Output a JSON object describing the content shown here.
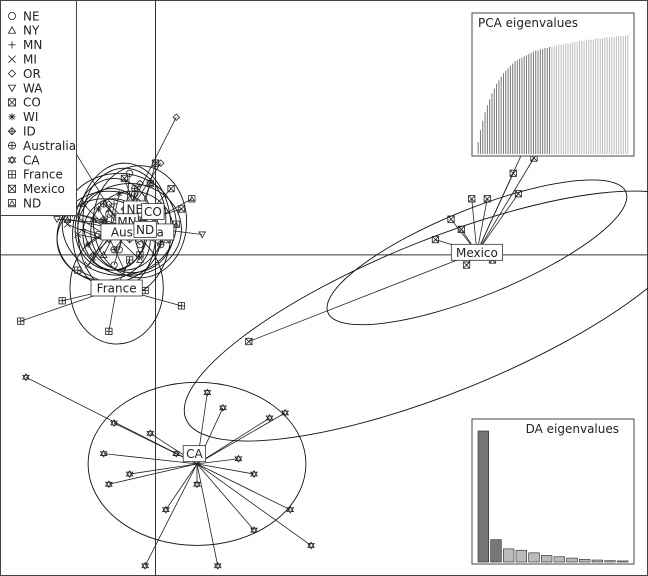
{
  "chart_data": {
    "type": "scatter",
    "title": "",
    "xlabel": "",
    "ylabel": "",
    "xlim": [
      -3.0,
      9.5
    ],
    "ylim": [
      -6.3,
      5.0
    ],
    "grid": false,
    "axes_lines_at_origin": true,
    "legend": {
      "placement": "top-left",
      "entries": [
        {
          "label": "NE",
          "symbol": "circle"
        },
        {
          "label": "NY",
          "symbol": "triangle-up"
        },
        {
          "label": "MN",
          "symbol": "plus"
        },
        {
          "label": "MI",
          "symbol": "cross"
        },
        {
          "label": "OR",
          "symbol": "diamond"
        },
        {
          "label": "WA",
          "symbol": "triangle-down"
        },
        {
          "label": "CO",
          "symbol": "square-cross"
        },
        {
          "label": "WI",
          "symbol": "asterisk"
        },
        {
          "label": "ID",
          "symbol": "diamond-plus"
        },
        {
          "label": "Australia",
          "symbol": "circle-plus"
        },
        {
          "label": "CA",
          "symbol": "star-of-david"
        },
        {
          "label": "France",
          "symbol": "square-plus"
        },
        {
          "label": "Mexico",
          "symbol": "circle-cross"
        },
        {
          "label": "ND",
          "symbol": "square-triangle"
        }
      ]
    },
    "groups": [
      {
        "label": "NE",
        "center": [
          -0.6,
          0.5
        ],
        "ellipse": {
          "rx": 0.9,
          "ry": 1.3,
          "angle": 0
        },
        "points": [
          [
            -0.9,
            0.8
          ],
          [
            -0.4,
            1.2
          ],
          [
            -0.7,
            0.1
          ],
          [
            -0.2,
            0.6
          ],
          [
            -1.1,
            0.4
          ],
          [
            -0.5,
            1.6
          ],
          [
            -0.8,
            -0.2
          ],
          [
            -0.3,
            0.2
          ]
        ]
      },
      {
        "label": "NY",
        "center": [
          -0.8,
          0.4
        ],
        "ellipse": {
          "rx": 0.8,
          "ry": 1.1,
          "angle": 0
        },
        "points": [
          [
            -1.2,
            0.7
          ],
          [
            -0.5,
            1.1
          ],
          [
            -1.0,
            0.0
          ],
          [
            -0.6,
            0.4
          ],
          [
            -1.4,
            1.0
          ],
          [
            -0.3,
            -0.1
          ]
        ]
      },
      {
        "label": "MN",
        "center": [
          -0.9,
          0.35
        ],
        "ellipse": {
          "rx": 1.0,
          "ry": 0.9,
          "angle": 0
        },
        "points": [
          [
            -1.4,
            0.5
          ],
          [
            -0.8,
            1.0
          ],
          [
            -1.2,
            -0.1
          ],
          [
            -0.5,
            0.3
          ],
          [
            -1.6,
            0.8
          ],
          [
            -0.6,
            -0.3
          ]
        ]
      },
      {
        "label": "MI",
        "center": [
          -1.0,
          0.3
        ],
        "ellipse": {
          "rx": 0.9,
          "ry": 0.8,
          "angle": 0
        },
        "points": [
          [
            -1.5,
            0.4
          ],
          [
            -0.9,
            0.9
          ],
          [
            -1.3,
            -0.2
          ],
          [
            -0.7,
            0.6
          ],
          [
            -1.7,
            0.6
          ]
        ]
      },
      {
        "label": "OR",
        "center": [
          -0.6,
          0.7
        ],
        "ellipse": {
          "rx": 0.8,
          "ry": 1.0,
          "angle": 0
        },
        "points": [
          [
            0.4,
            2.7
          ],
          [
            0.1,
            1.8
          ],
          [
            -0.3,
            1.4
          ],
          [
            -0.9,
            1.0
          ],
          [
            -0.5,
            0.3
          ]
        ]
      },
      {
        "label": "WA",
        "center": [
          -0.7,
          0.6
        ],
        "ellipse": {
          "rx": 1.1,
          "ry": 1.0,
          "angle": 0
        },
        "points": [
          [
            -1.6,
            2.1
          ],
          [
            0.9,
            0.4
          ],
          [
            -2.3,
            1.0
          ],
          [
            -1.9,
            0.7
          ],
          [
            -0.2,
            0.9
          ],
          [
            -0.9,
            0.3
          ]
        ]
      },
      {
        "label": "CO",
        "center": [
          -0.3,
          0.65
        ],
        "ellipse": {
          "rx": 0.9,
          "ry": 1.1,
          "angle": 0
        },
        "points": [
          [
            0.3,
            1.3
          ],
          [
            0.0,
            1.8
          ],
          [
            0.5,
            0.9
          ],
          [
            -0.6,
            1.5
          ],
          [
            0.2,
            0.3
          ],
          [
            -0.4,
            0.9
          ]
        ]
      },
      {
        "label": "WI",
        "center": [
          -0.85,
          0.5
        ],
        "ellipse": {
          "rx": 0.7,
          "ry": 0.8,
          "angle": 0
        },
        "points": [
          [
            -1.1,
            0.9
          ],
          [
            -0.6,
            0.6
          ],
          [
            -1.3,
            0.2
          ],
          [
            -0.7,
            1.2
          ]
        ]
      },
      {
        "label": "ID",
        "center": [
          -0.8,
          0.4
        ],
        "ellipse": {
          "rx": 0.6,
          "ry": 0.7,
          "angle": 0
        },
        "points": [
          [
            -1.0,
            0.7
          ],
          [
            -0.5,
            0.5
          ],
          [
            -1.2,
            0.0
          ],
          [
            -0.6,
            0.9
          ]
        ]
      },
      {
        "label": "Australia",
        "center": [
          -0.5,
          0.5
        ],
        "ellipse": {
          "rx": 1.0,
          "ry": 0.9,
          "angle": 0
        },
        "points": [
          [
            -1.0,
            1.0
          ],
          [
            0.0,
            0.9
          ],
          [
            -0.8,
            0.1
          ],
          [
            0.1,
            0.2
          ],
          [
            -0.4,
            1.3
          ]
        ]
      },
      {
        "label": "France",
        "center": [
          -0.75,
          -0.65
        ],
        "ellipse": {
          "rx": 0.9,
          "ry": 1.1,
          "angle": 0
        },
        "points": [
          [
            -2.6,
            -1.3
          ],
          [
            0.5,
            -1.0
          ],
          [
            -1.5,
            -0.3
          ],
          [
            -0.9,
            -1.5
          ],
          [
            -0.2,
            -0.7
          ],
          [
            -1.8,
            -0.9
          ],
          [
            -0.5,
            -0.1
          ]
        ]
      },
      {
        "label": "ND",
        "center": [
          -0.45,
          0.45
        ],
        "ellipse": {
          "rx": 0.8,
          "ry": 0.8,
          "angle": 0
        },
        "points": [
          [
            0.7,
            1.1
          ],
          [
            0.4,
            0.6
          ],
          [
            -0.1,
            1.4
          ],
          [
            -0.9,
            0.5
          ],
          [
            -0.3,
            0.0
          ],
          [
            -1.7,
            0.7
          ],
          [
            -2.1,
            1.0
          ]
        ]
      },
      {
        "label": "CA",
        "center": [
          0.8,
          -4.1
        ],
        "ellipse": {
          "rx": 2.1,
          "ry": 1.6,
          "angle": 0
        },
        "points": [
          [
            -2.5,
            -2.4
          ],
          [
            -0.8,
            -3.3
          ],
          [
            -1.0,
            -3.9
          ],
          [
            -0.9,
            -4.5
          ],
          [
            -0.5,
            -4.3
          ],
          [
            -0.1,
            -3.5
          ],
          [
            0.4,
            -3.9
          ],
          [
            1.0,
            -2.7
          ],
          [
            1.3,
            -3.0
          ],
          [
            2.5,
            -3.1
          ],
          [
            2.2,
            -3.2
          ],
          [
            1.6,
            -4.0
          ],
          [
            1.9,
            -4.3
          ],
          [
            0.8,
            -4.5
          ],
          [
            1.9,
            -5.4
          ],
          [
            2.6,
            -5.0
          ],
          [
            3.0,
            -5.7
          ],
          [
            -0.2,
            -6.1
          ],
          [
            1.2,
            -6.1
          ],
          [
            0.2,
            -5.0
          ]
        ]
      },
      {
        "label": "Mexico",
        "center": [
          6.2,
          0.05
        ],
        "ellipse": {
          "rx": 3.1,
          "ry": 0.85,
          "angle": -22
        },
        "points": [
          [
            1.8,
            -1.7
          ],
          [
            7.3,
            2.5
          ],
          [
            7.3,
            1.9
          ],
          [
            6.9,
            1.6
          ],
          [
            7.0,
            1.2
          ],
          [
            6.4,
            1.1
          ],
          [
            6.1,
            1.1
          ],
          [
            5.7,
            0.7
          ],
          [
            6.0,
            -0.2
          ],
          [
            5.4,
            0.3
          ],
          [
            6.5,
            -0.1
          ],
          [
            5.9,
            0.5
          ]
        ]
      }
    ],
    "labels_drawn": [
      {
        "label": "NE",
        "at": [
          -0.4,
          0.9
        ]
      },
      {
        "label": "CO",
        "at": [
          -0.05,
          0.85
        ]
      },
      {
        "label": "MN",
        "at": [
          -0.55,
          0.65
        ]
      },
      {
        "label": "Australia",
        "at": [
          -0.35,
          0.45
        ]
      },
      {
        "label": "ND",
        "at": [
          -0.2,
          0.5
        ]
      },
      {
        "label": "France",
        "at": [
          -0.75,
          -0.65
        ]
      },
      {
        "label": "CA",
        "at": [
          0.75,
          -3.9
        ]
      },
      {
        "label": "Mexico",
        "at": [
          6.2,
          0.05
        ]
      }
    ],
    "outer_ellipse": {
      "center": [
        5.5,
        -1.2
      ],
      "rx": 5.3,
      "ry": 1.5,
      "angle": -22
    },
    "insets": [
      {
        "title": "PCA eigenvalues",
        "type": "bar",
        "placement": "top-right",
        "values": [
          0.1,
          0.2,
          0.28,
          0.35,
          0.41,
          0.46,
          0.51,
          0.55,
          0.59,
          0.62,
          0.65,
          0.68,
          0.7,
          0.72,
          0.74,
          0.76,
          0.78,
          0.79,
          0.8,
          0.81,
          0.82,
          0.83,
          0.84,
          0.85,
          0.86,
          0.87,
          0.87,
          0.88,
          0.88,
          0.89,
          0.89,
          0.9,
          0.9,
          0.91,
          0.91,
          0.92,
          0.92,
          0.92,
          0.93,
          0.93,
          0.93,
          0.94,
          0.94,
          0.94,
          0.95,
          0.95,
          0.95,
          0.96,
          0.96,
          0.96,
          0.96,
          0.97,
          0.97,
          0.97,
          0.97,
          0.98,
          0.98,
          0.98,
          0.98,
          0.98,
          0.99,
          0.99,
          0.99,
          0.99,
          0.99,
          1.0
        ],
        "highlighted_count": 32
      },
      {
        "title": "DA eigenvalues",
        "type": "bar",
        "placement": "bottom-right",
        "values": [
          1.0,
          0.17,
          0.1,
          0.09,
          0.07,
          0.05,
          0.04,
          0.03,
          0.02,
          0.015,
          0.01,
          0.008
        ],
        "highlighted_count": 2
      }
    ],
    "colors": {
      "points": "#222222",
      "ellipse": "#111111",
      "inset_bar_dark": "#777777",
      "inset_bar_light": "#bbbbbb",
      "frame": "#444444"
    }
  }
}
